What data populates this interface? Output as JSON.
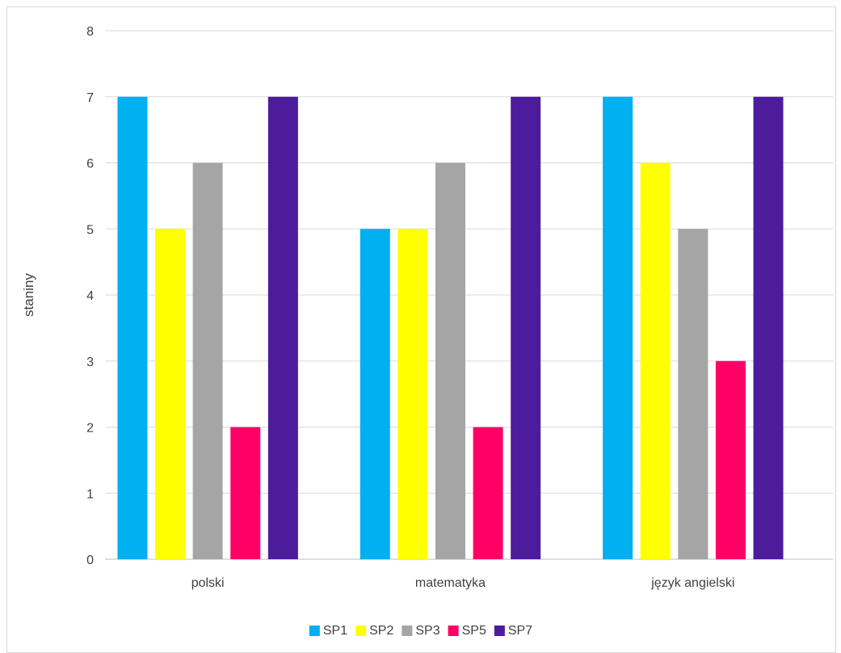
{
  "chart_data": {
    "type": "bar",
    "title": "",
    "xlabel": "",
    "ylabel": "staniny",
    "ylim": [
      0,
      8
    ],
    "yticks": [
      0,
      1,
      2,
      3,
      4,
      5,
      6,
      7,
      8
    ],
    "grid": true,
    "legend_position": "bottom",
    "categories": [
      "polski",
      "matematyka",
      "język angielski"
    ],
    "series": [
      {
        "name": "SP1",
        "color": "#00b0f0",
        "values": [
          7,
          5,
          7
        ]
      },
      {
        "name": "SP2",
        "color": "#ffff00",
        "values": [
          5,
          5,
          6
        ]
      },
      {
        "name": "SP3",
        "color": "#a5a5a5",
        "values": [
          6,
          6,
          5
        ]
      },
      {
        "name": "SP5",
        "color": "#ff0066",
        "values": [
          2,
          2,
          3
        ]
      },
      {
        "name": "SP7",
        "color": "#4c1c9c",
        "values": [
          7,
          7,
          7
        ]
      }
    ]
  }
}
